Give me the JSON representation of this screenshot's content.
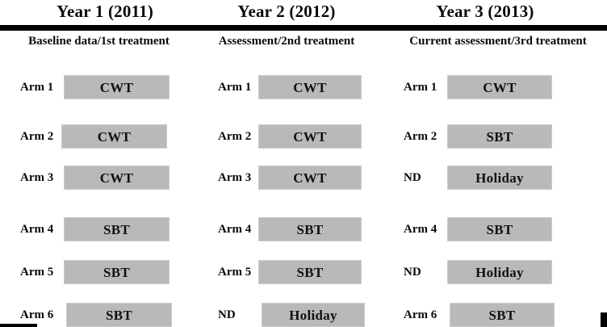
{
  "figure": {
    "colors": {
      "bar_fill": "#b9b9b9",
      "rule": "#000000",
      "text": "#0a0a0a"
    },
    "columns": [
      {
        "header": "Year 1 (2011)",
        "subtitle": "Baseline data/1st treatment",
        "rows": [
          {
            "label": "Arm 1",
            "treatment": "CWT"
          },
          {
            "label": "Arm 2",
            "treatment": "CWT"
          },
          {
            "label": "Arm 3",
            "treatment": "CWT"
          },
          {
            "label": "Arm 4",
            "treatment": "SBT"
          },
          {
            "label": "Arm 5",
            "treatment": "SBT"
          },
          {
            "label": "Arm 6",
            "treatment": "SBT"
          }
        ]
      },
      {
        "header": "Year 2 (2012)",
        "subtitle": "Assessment/2nd treatment",
        "rows": [
          {
            "label": "Arm 1",
            "treatment": "CWT"
          },
          {
            "label": "Arm 2",
            "treatment": "CWT"
          },
          {
            "label": "Arm 3",
            "treatment": "CWT"
          },
          {
            "label": "Arm 4",
            "treatment": "SBT"
          },
          {
            "label": "Arm 5",
            "treatment": "SBT"
          },
          {
            "label": "ND",
            "treatment": "Holiday"
          }
        ]
      },
      {
        "header": "Year 3 (2013)",
        "subtitle": "Current assessment/3rd treatment",
        "rows": [
          {
            "label": "Arm 1",
            "treatment": "CWT"
          },
          {
            "label": "Arm 2",
            "treatment": "SBT"
          },
          {
            "label": "ND",
            "treatment": "Holiday"
          },
          {
            "label": "Arm 4",
            "treatment": "SBT"
          },
          {
            "label": "ND",
            "treatment": "Holiday"
          },
          {
            "label": "Arm 6",
            "treatment": "SBT"
          }
        ]
      }
    ]
  }
}
